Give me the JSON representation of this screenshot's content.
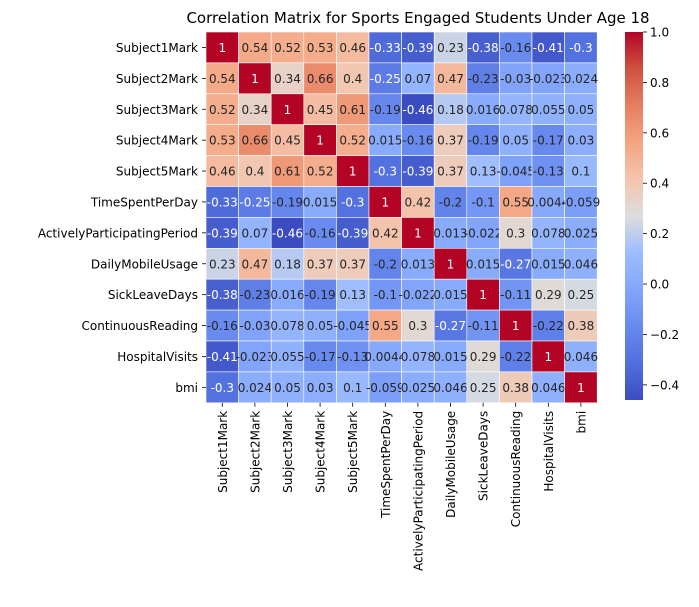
{
  "chart_data": {
    "type": "heatmap",
    "title": "Correlation Matrix for Sports Engaged Students Under Age 18",
    "xlabel": "",
    "ylabel": "",
    "labels": [
      "Subject1Mark",
      "Subject2Mark",
      "Subject3Mark",
      "Subject4Mark",
      "Subject5Mark",
      "TimeSpentPerDay",
      "ActivelyParticipatingPeriod",
      "DailyMobileUsage",
      "SickLeaveDays",
      "ContinuousReading",
      "HospitalVisits",
      "bmi"
    ],
    "matrix": [
      [
        1,
        0.54,
        0.52,
        0.53,
        0.46,
        -0.33,
        -0.39,
        0.23,
        -0.38,
        -0.16,
        -0.41,
        -0.3
      ],
      [
        0.54,
        1,
        0.34,
        0.66,
        0.4,
        -0.25,
        0.07,
        0.47,
        -0.23,
        -0.03,
        -0.023,
        0.024
      ],
      [
        0.52,
        0.34,
        1,
        0.45,
        0.61,
        -0.19,
        -0.46,
        0.18,
        0.016,
        0.078,
        0.055,
        0.05
      ],
      [
        0.53,
        0.66,
        0.45,
        1,
        0.52,
        0.015,
        -0.16,
        0.37,
        -0.19,
        0.05,
        -0.17,
        0.03
      ],
      [
        0.46,
        0.4,
        0.61,
        0.52,
        1,
        -0.3,
        -0.39,
        0.37,
        0.13,
        -0.045,
        -0.13,
        0.1
      ],
      [
        -0.33,
        -0.25,
        -0.19,
        0.015,
        -0.3,
        1,
        0.42,
        -0.2,
        -0.1,
        0.55,
        0.0044,
        -0.059
      ],
      [
        -0.39,
        0.07,
        -0.46,
        -0.16,
        -0.39,
        0.42,
        1,
        0.013,
        -0.022,
        0.3,
        0.078,
        0.025
      ],
      [
        0.23,
        0.47,
        0.18,
        0.37,
        0.37,
        -0.2,
        0.013,
        1,
        0.015,
        -0.27,
        0.015,
        0.046
      ],
      [
        -0.38,
        -0.23,
        0.016,
        -0.19,
        0.13,
        -0.1,
        -0.022,
        0.015,
        1,
        -0.11,
        0.29,
        0.25
      ],
      [
        -0.16,
        -0.03,
        0.078,
        0.05,
        -0.045,
        0.55,
        0.3,
        -0.27,
        -0.11,
        1,
        -0.22,
        0.38
      ],
      [
        -0.41,
        -0.023,
        0.055,
        -0.17,
        -0.13,
        0.0044,
        0.078,
        0.015,
        0.29,
        -0.22,
        1,
        0.046
      ],
      [
        -0.3,
        0.024,
        0.05,
        0.03,
        0.1,
        -0.059,
        0.025,
        0.046,
        0.25,
        0.38,
        0.046,
        1
      ]
    ],
    "colorbar": {
      "colormap": "coolwarm",
      "vmin": -0.46,
      "vmax": 1,
      "ticks": [
        -0.4,
        -0.2,
        0.0,
        0.2,
        0.4,
        0.6,
        0.8,
        1.0
      ],
      "tick_labels": [
        "−0.4",
        "−0.2",
        "0.0",
        "0.2",
        "0.4",
        "0.6",
        "0.8",
        "1.0"
      ]
    },
    "annotations": true,
    "cell_border_color": "#ffffff"
  }
}
